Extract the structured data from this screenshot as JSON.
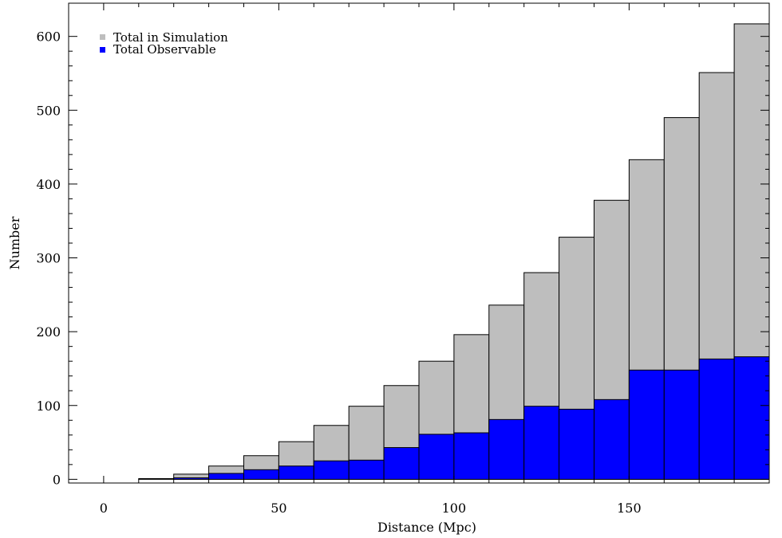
{
  "chart_data": {
    "type": "bar",
    "title": "",
    "xlabel": "Distance (Mpc)",
    "ylabel": "Number",
    "xlim": [
      -10,
      190
    ],
    "ylim": [
      -5,
      645
    ],
    "xticks": [
      0,
      50,
      100,
      150
    ],
    "yticks": [
      0,
      100,
      200,
      300,
      400,
      500,
      600
    ],
    "bin_edges": [
      10,
      20,
      30,
      40,
      50,
      60,
      70,
      80,
      90,
      100,
      110,
      120,
      130,
      140,
      150,
      160,
      170,
      180,
      190
    ],
    "legend_position": "top-left",
    "series": [
      {
        "name": "Total in Simulation",
        "color": "#bebebe",
        "values": [
          1,
          7,
          18,
          32,
          51,
          73,
          99,
          127,
          160,
          196,
          236,
          280,
          328,
          378,
          433,
          490,
          551,
          617
        ]
      },
      {
        "name": "Total Observable",
        "color": "#0000ff",
        "values": [
          0,
          2,
          8,
          13,
          18,
          25,
          26,
          43,
          61,
          63,
          81,
          99,
          95,
          108,
          148,
          148,
          163,
          166
        ]
      }
    ]
  }
}
